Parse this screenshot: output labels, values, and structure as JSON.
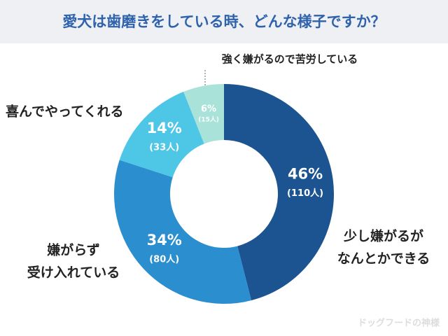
{
  "chart_data": {
    "type": "donut",
    "title": "愛犬は歯磨きをしている時、どんな様子ですか？",
    "categories": [
      [
        "少し嫌がるが",
        "なんとかできる"
      ],
      [
        "嫌がらず",
        "受け入れている"
      ],
      [
        "喜んでやってくれる"
      ],
      [
        "強く嫌がるので苦労している"
      ]
    ],
    "values": [
      46,
      34,
      14,
      6
    ],
    "value_labels": [
      "46%",
      "34%",
      "14%",
      "6%"
    ],
    "counts": [
      110,
      80,
      33,
      15
    ],
    "count_labels": [
      "(110人)",
      "(80人)",
      "(33人)",
      "(15人)"
    ],
    "colors": [
      "#1b5490",
      "#2b8fcf",
      "#4ec6e6",
      "#a9e2d9"
    ],
    "source": "ドッグフードの神様"
  }
}
